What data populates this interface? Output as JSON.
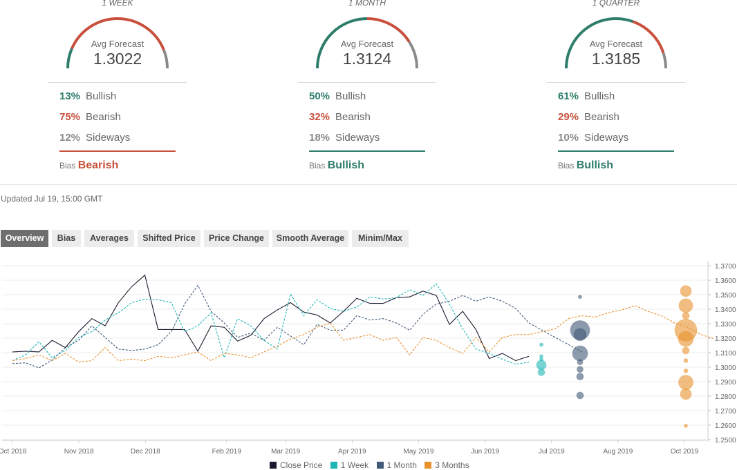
{
  "forecasts": [
    {
      "period": "1 WEEK",
      "avg_label": "Avg Forecast",
      "avg_value": "1.3022",
      "rows": [
        {
          "pct": "13%",
          "label": "Bullish"
        },
        {
          "pct": "75%",
          "label": "Bearish"
        },
        {
          "pct": "12%",
          "label": "Sideways"
        }
      ],
      "bias_label": "Bias",
      "bias": "Bearish",
      "bias_color": "#c8503c"
    },
    {
      "period": "1 MONTH",
      "avg_label": "Avg Forecast",
      "avg_value": "1.3124",
      "rows": [
        {
          "pct": "50%",
          "label": "Bullish"
        },
        {
          "pct": "32%",
          "label": "Bearish"
        },
        {
          "pct": "18%",
          "label": "Sideways"
        }
      ],
      "bias_label": "Bias",
      "bias": "Bullish",
      "bias_color": "#2e7d6b"
    },
    {
      "period": "1 QUARTER",
      "avg_label": "Avg Forecast",
      "avg_value": "1.3185",
      "rows": [
        {
          "pct": "61%",
          "label": "Bullish"
        },
        {
          "pct": "29%",
          "label": "Bearish"
        },
        {
          "pct": "10%",
          "label": "Sideways"
        }
      ],
      "bias_label": "Bias",
      "bias": "Bullish",
      "bias_color": "#2e7d6b"
    }
  ],
  "colors": {
    "bullish": "#2e7d6b",
    "bearish": "#c8503c",
    "sideways": "#8a8a8a"
  },
  "updated": "Updated Jul 19, 15:00 GMT",
  "tabs": [
    "Overview",
    "Bias",
    "Averages",
    "Shifted Price",
    "Price Change",
    "Smooth Average",
    "Minim/Max"
  ],
  "active_tab": "Overview",
  "chart_data": {
    "type": "line",
    "x_labels": [
      "Oct 2018",
      "Nov 2018",
      "Dec 2018",
      "Feb 2019",
      "Mar 2019",
      "Apr 2019",
      "May 2019",
      "Jun 2019",
      "Jul 2019",
      "Aug 2019",
      "Oct 2019"
    ],
    "yticks": [
      "1.3700",
      "1.3600",
      "1.3500",
      "1.3400",
      "1.3300",
      "1.3200",
      "1.3100",
      "1.3000",
      "1.2900",
      "1.2800",
      "1.2700",
      "1.2600",
      "1.2500"
    ],
    "ylim": [
      1.25,
      1.37
    ],
    "weeks_span": [
      0,
      54
    ],
    "legend": [
      {
        "name": "Close Price",
        "color": "#1a1a2e"
      },
      {
        "name": "1 Week",
        "color": "#1fb5b5"
      },
      {
        "name": "1 Month",
        "color": "#415a77"
      },
      {
        "name": "3 Months",
        "color": "#e8912d"
      }
    ],
    "series": [
      {
        "name": "Close Price",
        "color": "#1a1a2e",
        "dash": false,
        "x_start": 0,
        "values": [
          1.3105,
          1.311,
          1.3105,
          1.3185,
          1.3135,
          1.3245,
          1.3335,
          1.3285,
          1.3445,
          1.3555,
          1.3635,
          1.326,
          1.326,
          1.326,
          1.311,
          1.3285,
          1.3275,
          1.318,
          1.322,
          1.3335,
          1.3395,
          1.3445,
          1.338,
          1.336,
          1.3305,
          1.3385,
          1.3475,
          1.344,
          1.344,
          1.348,
          1.3485,
          1.3525,
          1.3495,
          1.3295,
          1.3385,
          1.326,
          1.306,
          1.3095,
          1.3045,
          1.3075
        ]
      },
      {
        "name": "1 Week",
        "color": "#1fb5b5",
        "dash": true,
        "x_start": 0,
        "values": [
          1.3045,
          1.3085,
          1.3175,
          1.3065,
          1.3115,
          1.3205,
          1.3245,
          1.3325,
          1.3375,
          1.3445,
          1.347,
          1.3465,
          1.3445,
          1.3245,
          1.3285,
          1.3375,
          1.3065,
          1.3335,
          1.3285,
          1.3185,
          1.3125,
          1.3505,
          1.3355,
          1.3465,
          1.3405,
          1.3385,
          1.3415,
          1.3485,
          1.347,
          1.348,
          1.3535,
          1.3495,
          1.3575,
          1.3435,
          1.3265,
          1.3125,
          1.3095,
          1.3055,
          1.302,
          1.3035
        ]
      },
      {
        "name": "1 Month",
        "color": "#415a77",
        "dash": true,
        "x_start": 0,
        "values": [
          1.3025,
          1.303,
          1.2995,
          1.305,
          1.3135,
          1.3185,
          1.3285,
          1.3205,
          1.3125,
          1.3115,
          1.3125,
          1.3155,
          1.3245,
          1.3435,
          1.3565,
          1.3385,
          1.3305,
          1.3205,
          1.3235,
          1.3185,
          1.3275,
          1.3215,
          1.3155,
          1.3295,
          1.3255,
          1.3255,
          1.3355,
          1.3325,
          1.3335,
          1.3305,
          1.3255,
          1.3365,
          1.3435,
          1.3455,
          1.3495,
          1.3455,
          1.3485,
          1.3455,
          1.3405,
          1.3305,
          1.3255,
          1.3205,
          1.3155,
          1.3105
        ]
      },
      {
        "name": "3 Months",
        "color": "#e8912d",
        "dash": true,
        "x_start": 0,
        "values": [
          1.3045,
          1.306,
          1.3085,
          1.3045,
          1.3095,
          1.3035,
          1.3045,
          1.3135,
          1.3045,
          1.3055,
          1.3045,
          1.3075,
          1.3065,
          1.3085,
          1.3105,
          1.3045,
          1.3095,
          1.3085,
          1.3065,
          1.3105,
          1.3145,
          1.3195,
          1.3225,
          1.3275,
          1.3305,
          1.3185,
          1.3205,
          1.3225,
          1.3185,
          1.3205,
          1.3085,
          1.3205,
          1.3185,
          1.3135,
          1.3095,
          1.3205,
          1.3105,
          1.3205,
          1.3225,
          1.3225,
          1.3245,
          1.3265,
          1.3335,
          1.3355,
          1.3345,
          1.3375,
          1.3395,
          1.3425,
          1.3385,
          1.3355,
          1.3305,
          1.3275,
          1.3225,
          1.3195
        ]
      }
    ],
    "bubbles": [
      {
        "name": "1 Week",
        "color": "#1fb5b5",
        "week": 41,
        "points": [
          {
            "v": 1.3155,
            "r": 2.5
          },
          {
            "v": 1.3075,
            "r": 2.5
          },
          {
            "v": 1.3055,
            "r": 2.5
          },
          {
            "v": 1.3015,
            "r": 7
          },
          {
            "v": 1.2965,
            "r": 5
          }
        ]
      },
      {
        "name": "1 Month",
        "color": "#415a77",
        "week": 44,
        "points": [
          {
            "v": 1.3485,
            "r": 2.5
          },
          {
            "v": 1.3255,
            "r": 14
          },
          {
            "v": 1.3225,
            "r": 9
          },
          {
            "v": 1.3095,
            "r": 11
          },
          {
            "v": 1.3035,
            "r": 4
          },
          {
            "v": 1.2985,
            "r": 4.5
          },
          {
            "v": 1.2935,
            "r": 5
          },
          {
            "v": 1.2805,
            "r": 5
          }
        ]
      },
      {
        "name": "3 Months",
        "color": "#e8912d",
        "week": 52,
        "points": [
          {
            "v": 1.3525,
            "r": 8
          },
          {
            "v": 1.3425,
            "r": 10
          },
          {
            "v": 1.3355,
            "r": 5
          },
          {
            "v": 1.3255,
            "r": 16
          },
          {
            "v": 1.3195,
            "r": 11
          },
          {
            "v": 1.3115,
            "r": 5
          },
          {
            "v": 1.3045,
            "r": 3
          },
          {
            "v": 1.2975,
            "r": 3
          },
          {
            "v": 1.2895,
            "r": 10.5
          },
          {
            "v": 1.2815,
            "r": 8
          },
          {
            "v": 1.2595,
            "r": 2.5
          }
        ]
      }
    ]
  }
}
